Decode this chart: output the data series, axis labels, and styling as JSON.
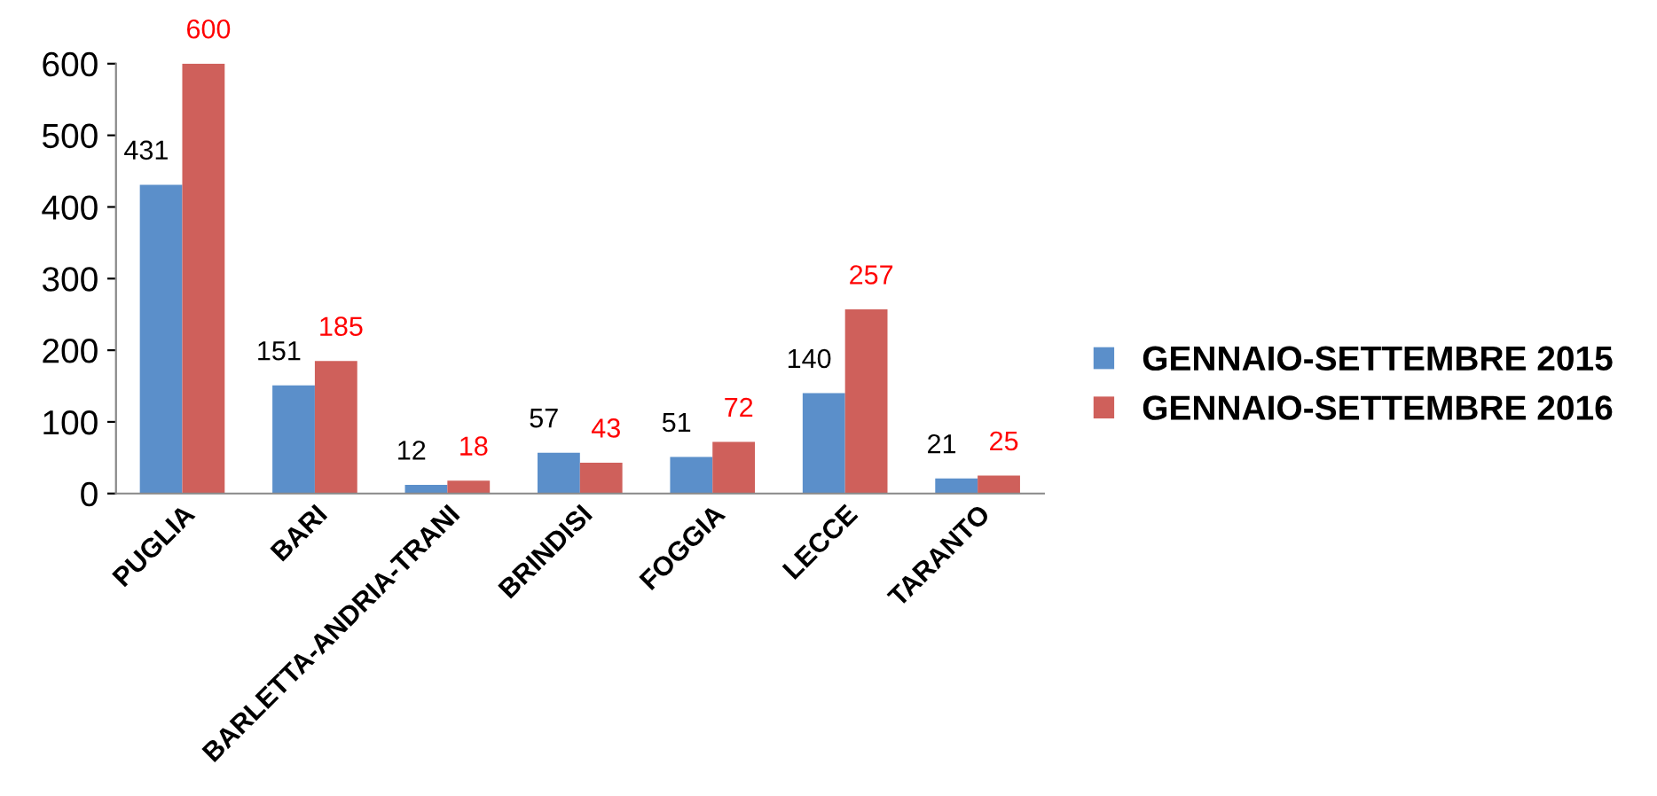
{
  "chart_data": {
    "type": "bar",
    "categories": [
      "PUGLIA",
      "BARI",
      "BARLETTA-ANDRIA-TRANI",
      "BRINDISI",
      "FOGGIA",
      "LECCE",
      "TARANTO"
    ],
    "series": [
      {
        "name": "GENNAIO-SETTEMBRE 2015",
        "color": "#5b8fca",
        "values": [
          431,
          151,
          12,
          57,
          51,
          140,
          21
        ]
      },
      {
        "name": "GENNAIO-SETTEMBRE 2016",
        "color": "#cf605b",
        "values": [
          600,
          185,
          18,
          43,
          72,
          257,
          25
        ]
      }
    ],
    "ylim": [
      0,
      600
    ],
    "yticks": [
      0,
      100,
      200,
      300,
      400,
      500,
      600
    ],
    "grid": false,
    "legend": "right",
    "data_labels": true
  }
}
